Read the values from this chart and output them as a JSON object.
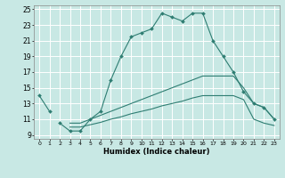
{
  "title": "",
  "xlabel": "Humidex (Indice chaleur)",
  "ylabel": "",
  "bg_color": "#c8e8e4",
  "grid_color": "#ffffff",
  "line_color": "#2e7d72",
  "xlim": [
    -0.5,
    23.5
  ],
  "ylim": [
    8.5,
    25.5
  ],
  "xticks": [
    0,
    1,
    2,
    3,
    4,
    5,
    6,
    7,
    8,
    9,
    10,
    11,
    12,
    13,
    14,
    15,
    16,
    17,
    18,
    19,
    20,
    21,
    22,
    23
  ],
  "yticks": [
    9,
    11,
    13,
    15,
    17,
    19,
    21,
    23,
    25
  ],
  "series": [
    {
      "x": [
        0,
        1
      ],
      "y": [
        14.0,
        12.0
      ],
      "marker": true
    },
    {
      "x": [
        2,
        3,
        4,
        5,
        6,
        7,
        8,
        9,
        10,
        11,
        12,
        13,
        14,
        15,
        16,
        17,
        18,
        19,
        20,
        21,
        22,
        23
      ],
      "y": [
        10.5,
        9.5,
        9.5,
        11.0,
        12.0,
        16.0,
        19.0,
        21.5,
        22.0,
        22.5,
        24.5,
        24.0,
        23.5,
        24.5,
        24.5,
        21.0,
        19.0,
        17.0,
        14.5,
        13.0,
        12.5,
        11.0
      ],
      "marker": true
    },
    {
      "x": [
        3,
        4,
        5,
        6,
        7,
        8,
        9,
        10,
        11,
        12,
        13,
        14,
        15,
        16,
        17,
        18,
        19,
        20,
        21,
        22,
        23
      ],
      "y": [
        10.5,
        10.5,
        11.0,
        11.5,
        12.0,
        12.5,
        13.0,
        13.5,
        14.0,
        14.5,
        15.0,
        15.5,
        16.0,
        16.5,
        16.5,
        16.5,
        16.5,
        15.0,
        13.0,
        12.5,
        11.0
      ],
      "marker": false
    },
    {
      "x": [
        3,
        4,
        5,
        6,
        7,
        8,
        9,
        10,
        11,
        12,
        13,
        14,
        15,
        16,
        17,
        18,
        19,
        20,
        21,
        22,
        23
      ],
      "y": [
        10.0,
        10.0,
        10.3,
        10.6,
        11.0,
        11.3,
        11.7,
        12.0,
        12.3,
        12.7,
        13.0,
        13.3,
        13.7,
        14.0,
        14.0,
        14.0,
        14.0,
        13.5,
        11.0,
        10.5,
        10.2
      ],
      "marker": false
    }
  ]
}
